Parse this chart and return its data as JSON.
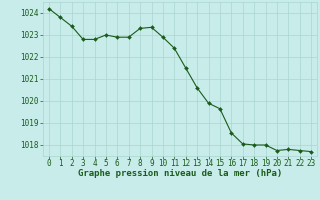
{
  "x": [
    0,
    1,
    2,
    3,
    4,
    5,
    6,
    7,
    8,
    9,
    10,
    11,
    12,
    13,
    14,
    15,
    16,
    17,
    18,
    19,
    20,
    21,
    22,
    23
  ],
  "y": [
    1024.2,
    1023.8,
    1023.4,
    1022.8,
    1022.8,
    1023.0,
    1022.9,
    1022.9,
    1023.3,
    1023.35,
    1022.9,
    1022.4,
    1021.5,
    1020.6,
    1019.9,
    1019.65,
    1018.55,
    1018.05,
    1018.0,
    1018.0,
    1017.75,
    1017.8,
    1017.75,
    1017.7
  ],
  "ylim": [
    1017.5,
    1024.5
  ],
  "yticks": [
    1018,
    1019,
    1020,
    1021,
    1022,
    1023,
    1024
  ],
  "xlim": [
    -0.5,
    23.5
  ],
  "xticks": [
    0,
    1,
    2,
    3,
    4,
    5,
    6,
    7,
    8,
    9,
    10,
    11,
    12,
    13,
    14,
    15,
    16,
    17,
    18,
    19,
    20,
    21,
    22,
    23
  ],
  "line_color": "#1a5c1a",
  "marker_color": "#1a5c1a",
  "bg_color": "#c8ecea",
  "grid_color": "#aad4d0",
  "axis_label_color": "#1a5c1a",
  "tick_label_color": "#1a5c1a",
  "xlabel": "Graphe pression niveau de la mer (hPa)",
  "xlabel_fontsize": 6.5,
  "tick_fontsize": 5.5,
  "ytick_fontsize": 5.5
}
